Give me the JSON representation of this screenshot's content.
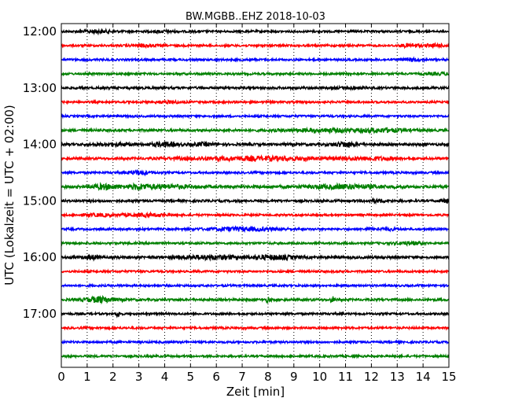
{
  "chart_data": {
    "type": "line",
    "title": "BW.MGBB..EHZ 2018-10-03",
    "xlabel": "Zeit  [min]",
    "ylabel": "UTC (Lokalzeit = UTC + 02:00)",
    "xlim": [
      0,
      15
    ],
    "xticks": [
      0,
      1,
      2,
      3,
      4,
      5,
      6,
      7,
      8,
      9,
      10,
      11,
      12,
      13,
      14,
      15
    ],
    "xtick_labels": [
      "0",
      "1",
      "2",
      "3",
      "4",
      "5",
      "6",
      "7",
      "8",
      "9",
      "10",
      "11",
      "12",
      "13",
      "14",
      "15"
    ],
    "grid": "vertical dotted",
    "yticks": [
      {
        "time": "12:00",
        "label": "12:00"
      },
      {
        "time": "13:00",
        "label": "13:00"
      },
      {
        "time": "14:00",
        "label": "14:00"
      },
      {
        "time": "15:00",
        "label": "15:00"
      },
      {
        "time": "16:00",
        "label": "16:00"
      },
      {
        "time": "17:00",
        "label": "17:00"
      }
    ],
    "colors": [
      "#000000",
      "#ff0000",
      "#0000ff",
      "#008000"
    ],
    "traces": [
      {
        "start": "12:00",
        "color": "#000000",
        "noise": 0.8,
        "bursts": [
          [
            1.4,
            1.0,
            0.4
          ],
          [
            4.0,
            0.6,
            0.3
          ]
        ]
      },
      {
        "start": "12:15",
        "color": "#ff0000",
        "noise": 0.8,
        "bursts": [
          [
            3.2,
            0.9,
            0.3
          ],
          [
            13.5,
            1.0,
            0.3
          ],
          [
            14.5,
            0.8,
            0.3
          ]
        ]
      },
      {
        "start": "12:30",
        "color": "#0000ff",
        "noise": 0.8,
        "bursts": [
          [
            13.5,
            1.0,
            0.3
          ]
        ]
      },
      {
        "start": "12:45",
        "color": "#008000",
        "noise": 0.8,
        "bursts": [
          [
            14.6,
            0.7,
            0.4
          ]
        ]
      },
      {
        "start": "13:00",
        "color": "#000000",
        "noise": 0.9,
        "bursts": [
          [
            11.2,
            0.7,
            0.3
          ]
        ]
      },
      {
        "start": "13:15",
        "color": "#ff0000",
        "noise": 0.8,
        "bursts": [
          [
            4.2,
            0.7,
            0.4
          ]
        ]
      },
      {
        "start": "13:30",
        "color": "#0000ff",
        "noise": 0.8,
        "bursts": []
      },
      {
        "start": "13:45",
        "color": "#008000",
        "noise": 0.9,
        "bursts": [
          [
            10.5,
            1.0,
            1.5
          ],
          [
            12.5,
            0.8,
            0.6
          ]
        ]
      },
      {
        "start": "14:00",
        "color": "#000000",
        "noise": 1.0,
        "bursts": [
          [
            2.0,
            0.8,
            0.5
          ],
          [
            4.0,
            1.3,
            0.4
          ],
          [
            5.5,
            0.9,
            0.3
          ],
          [
            11.0,
            1.6,
            0.3
          ]
        ]
      },
      {
        "start": "14:15",
        "color": "#ff0000",
        "noise": 0.9,
        "bursts": [
          [
            7.5,
            1.2,
            2.0
          ],
          [
            12.0,
            0.9,
            0.8
          ]
        ]
      },
      {
        "start": "14:30",
        "color": "#0000ff",
        "noise": 0.8,
        "bursts": [
          [
            3.0,
            1.3,
            0.3
          ]
        ]
      },
      {
        "start": "14:45",
        "color": "#008000",
        "noise": 1.1,
        "bursts": [
          [
            1.7,
            1.5,
            0.4
          ],
          [
            3.0,
            1.2,
            0.3
          ],
          [
            4.0,
            1.0,
            0.8
          ],
          [
            11.0,
            1.2,
            1.0
          ]
        ]
      },
      {
        "start": "15:00",
        "color": "#000000",
        "noise": 0.9,
        "bursts": [
          [
            12.2,
            1.0,
            0.3
          ],
          [
            15.0,
            1.3,
            0.2
          ]
        ]
      },
      {
        "start": "15:15",
        "color": "#ff0000",
        "noise": 0.8,
        "bursts": [
          [
            1.5,
            0.8,
            0.4
          ],
          [
            3.2,
            0.9,
            0.6
          ]
        ]
      },
      {
        "start": "15:30",
        "color": "#0000ff",
        "noise": 0.8,
        "bursts": [
          [
            7.0,
            1.2,
            1.0
          ],
          [
            12.5,
            0.7,
            0.5
          ]
        ]
      },
      {
        "start": "15:45",
        "color": "#008000",
        "noise": 0.8,
        "bursts": [
          [
            13.5,
            1.0,
            0.4
          ]
        ]
      },
      {
        "start": "16:00",
        "color": "#000000",
        "noise": 1.0,
        "bursts": [
          [
            1.2,
            1.2,
            0.2
          ],
          [
            5.8,
            1.2,
            0.9
          ],
          [
            8.2,
            1.3,
            0.6
          ]
        ]
      },
      {
        "start": "16:15",
        "color": "#ff0000",
        "noise": 0.8,
        "bursts": []
      },
      {
        "start": "16:30",
        "color": "#0000ff",
        "noise": 0.8,
        "bursts": []
      },
      {
        "start": "16:45",
        "color": "#008000",
        "noise": 0.9,
        "bursts": [
          [
            1.5,
            2.0,
            0.4
          ],
          [
            8.0,
            2.2,
            0.05
          ],
          [
            10.5,
            2.0,
            0.05
          ]
        ]
      },
      {
        "start": "17:00",
        "color": "#000000",
        "noise": 0.8,
        "bursts": [
          [
            2.2,
            2.2,
            0.05
          ]
        ]
      },
      {
        "start": "17:15",
        "color": "#ff0000",
        "noise": 0.8,
        "bursts": []
      },
      {
        "start": "17:30",
        "color": "#0000ff",
        "noise": 0.8,
        "bursts": []
      },
      {
        "start": "17:45",
        "color": "#008000",
        "noise": 0.8,
        "bursts": []
      }
    ]
  }
}
